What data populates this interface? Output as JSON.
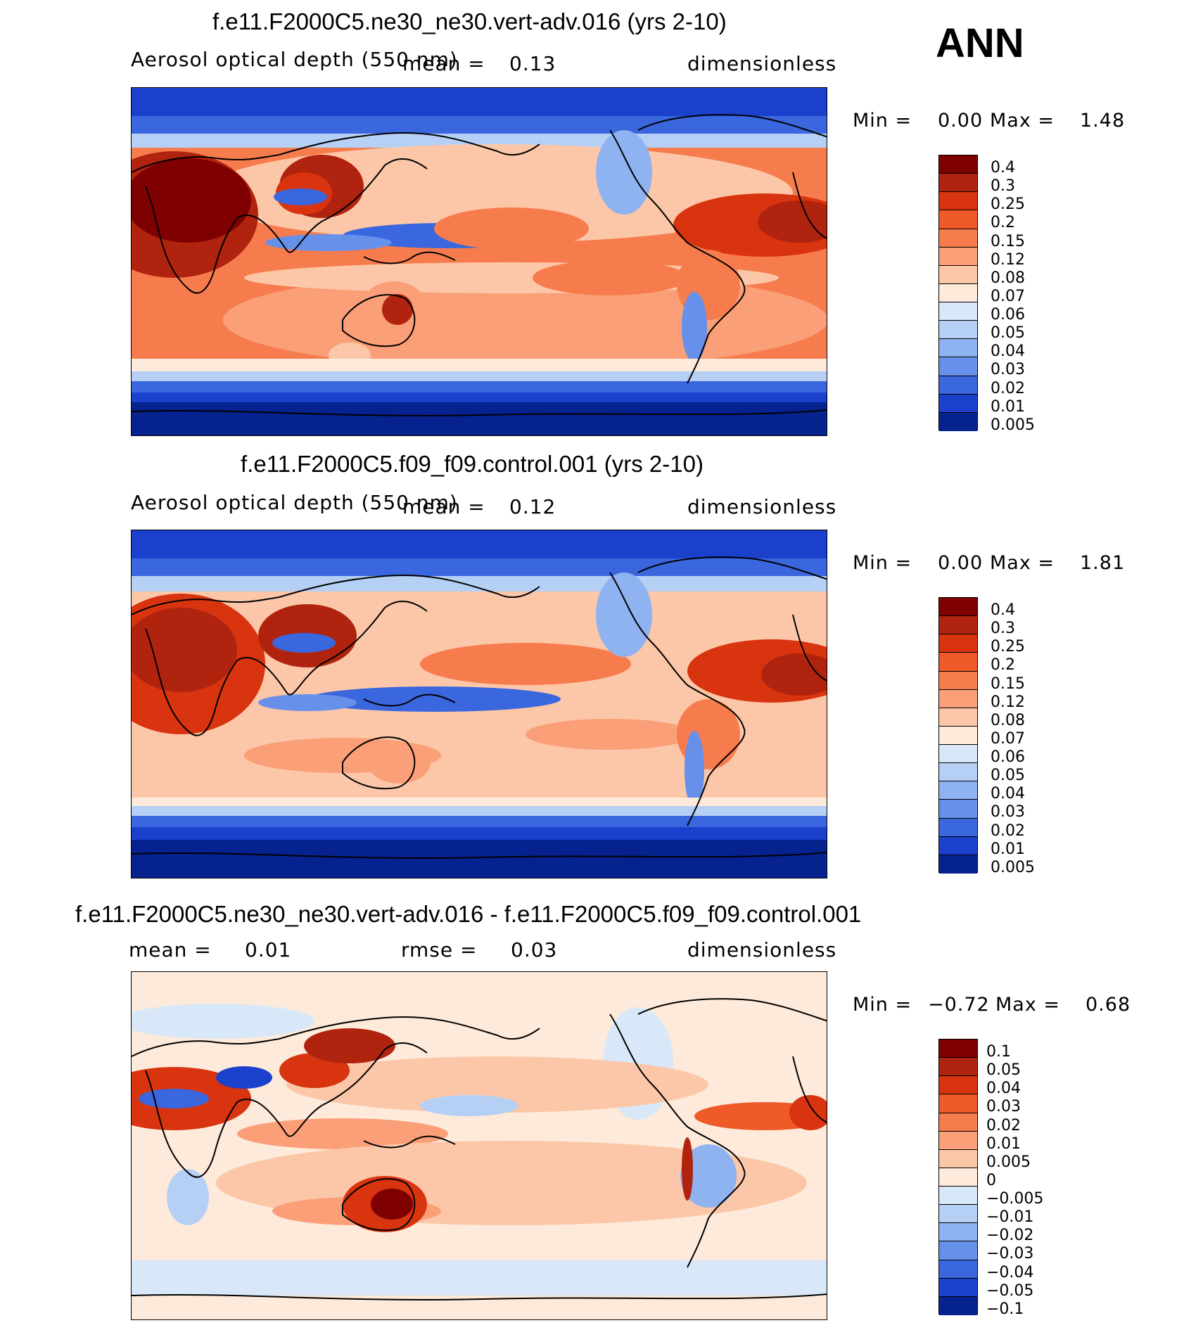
{
  "season": "ANN",
  "panels": [
    {
      "title": "f.e11.F2000C5.ne30_ne30.vert-adv.016 (yrs 2-10)",
      "field_label": "Aerosol optical depth (550 nm)",
      "mean_label": "mean =",
      "mean_value": "0.13",
      "units": "dimensionless",
      "min_label": "Min =",
      "min_value": "0.00",
      "max_label": "Max =",
      "max_value": "1.48",
      "colorbar_levels": [
        "0.4",
        "0.3",
        "0.25",
        "0.2",
        "0.15",
        "0.12",
        "0.08",
        "0.07",
        "0.06",
        "0.05",
        "0.04",
        "0.03",
        "0.02",
        "0.01",
        "0.005"
      ],
      "colorbar_colors": [
        "#7f0000",
        "#b0230e",
        "#d8340f",
        "#ef5a28",
        "#f77c4d",
        "#fa9f78",
        "#fcc7a8",
        "#fdeadb",
        "#d8e8f8",
        "#b6d0f5",
        "#8fb2f0",
        "#6690ea",
        "#3a66de",
        "#1a40cc",
        "#06228f"
      ]
    },
    {
      "title": "f.e11.F2000C5.f09_f09.control.001 (yrs 2-10)",
      "field_label": "Aerosol optical depth (550 nm)",
      "mean_label": "mean =",
      "mean_value": "0.12",
      "units": "dimensionless",
      "min_label": "Min =",
      "min_value": "0.00",
      "max_label": "Max =",
      "max_value": "1.81",
      "colorbar_levels": [
        "0.4",
        "0.3",
        "0.25",
        "0.2",
        "0.15",
        "0.12",
        "0.08",
        "0.07",
        "0.06",
        "0.05",
        "0.04",
        "0.03",
        "0.02",
        "0.01",
        "0.005"
      ],
      "colorbar_colors": [
        "#7f0000",
        "#b0230e",
        "#d8340f",
        "#ef5a28",
        "#f77c4d",
        "#fa9f78",
        "#fcc7a8",
        "#fdeadb",
        "#d8e8f8",
        "#b6d0f5",
        "#8fb2f0",
        "#6690ea",
        "#3a66de",
        "#1a40cc",
        "#06228f"
      ]
    },
    {
      "title": "f.e11.F2000C5.ne30_ne30.vert-adv.016 - f.e11.F2000C5.f09_f09.control.001",
      "mean_label": "mean =",
      "mean_value": "0.01",
      "rmse_label": "rmse =",
      "rmse_value": "0.03",
      "units": "dimensionless",
      "min_label": "Min =",
      "min_value": "−0.72",
      "max_label": "Max =",
      "max_value": "0.68",
      "colorbar_levels": [
        "0.1",
        "0.05",
        "0.04",
        "0.03",
        "0.02",
        "0.01",
        "0.005",
        "0",
        "−0.005",
        "−0.01",
        "−0.02",
        "−0.03",
        "−0.04",
        "−0.05",
        "−0.1"
      ],
      "colorbar_colors": [
        "#7f0000",
        "#b0230e",
        "#d8340f",
        "#ef5a28",
        "#f77c4d",
        "#fa9f78",
        "#fcc7a8",
        "#fdeadb",
        "#d8e8f8",
        "#b6d0f5",
        "#8fb2f0",
        "#6690ea",
        "#3a66de",
        "#1a40cc",
        "#06228f"
      ]
    }
  ]
}
